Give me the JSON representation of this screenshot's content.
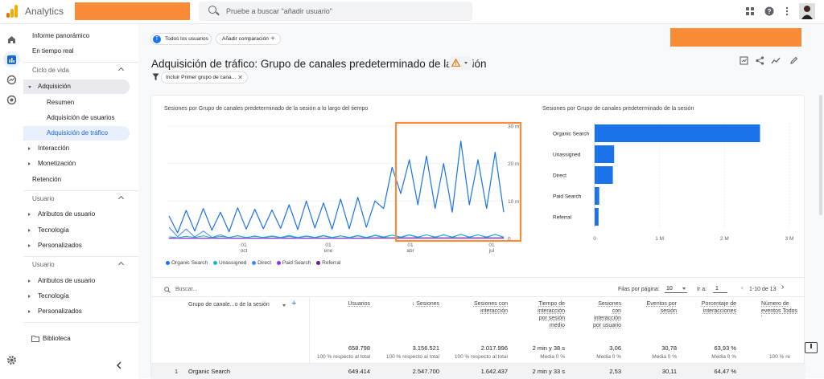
{
  "app": {
    "title": "Analytics"
  },
  "search": {
    "placeholder": "Pruebe a buscar \"añadir usuario\""
  },
  "nav": {
    "overview": "Informe panorámico",
    "realtime": "En tiempo real",
    "lifecycle_section": "Ciclo de vida",
    "acquisition": "Adquisición",
    "summary": "Resumen",
    "user_acq": "Adquisición de usuarios",
    "traffic_acq": "Adquisición de tráfico",
    "engagement": "Interacción",
    "monetization": "Monetización",
    "retention": "Retención",
    "user_section": "Usuario",
    "user_attrs": "Atributos de usuario",
    "tech": "Tecnología",
    "custom": "Personalizados",
    "user_section2": "Usuario",
    "user_attrs2": "Atributos de usuario",
    "tech2": "Tecnología",
    "custom2": "Personalizados",
    "library": "Biblioteca"
  },
  "toolbar": {
    "segment_avatar": "T",
    "segment": "Todos los usuarios",
    "add_comparison": "Añadir comparación",
    "filter": "Incluir Primer grupo de cana..."
  },
  "page_title": "Adquisición de tráfico: Grupo de canales predeterminado de la sesión",
  "line_chart": {
    "title": "Sesiones por Grupo de canales predeterminado de la sesión a lo largo del tiempo",
    "y_ticks": [
      "30 mil",
      "20 mil",
      "10 mil",
      "0"
    ],
    "x_ticks": [
      [
        "01",
        "oct"
      ],
      [
        "01",
        "ene"
      ],
      [
        "01",
        "abr"
      ],
      [
        "01",
        "jul"
      ]
    ]
  },
  "legend": [
    {
      "label": "Organic Search",
      "color": "#1a73e8"
    },
    {
      "label": "Unassigned",
      "color": "#12b5cb"
    },
    {
      "label": "Direct",
      "color": "#4285f4"
    },
    {
      "label": "Paid Search",
      "color": "#9334e6"
    },
    {
      "label": "Referral",
      "color": "#6a1b9a"
    }
  ],
  "bar_chart_title": "Sesiones por Grupo de canales predeterminado de la sesión",
  "chart_data": [
    {
      "type": "line",
      "title": "Sesiones por Grupo de canales predeterminado de la sesión a lo largo del tiempo",
      "xlabel": "",
      "ylabel": "",
      "x_range": [
        "sep",
        "jul"
      ],
      "ylim": [
        0,
        30000
      ],
      "x_ticks": [
        "01 oct",
        "01 ene",
        "01 abr",
        "01 jul"
      ],
      "y_ticks": [
        0,
        10000,
        20000,
        30000
      ],
      "series": [
        {
          "name": "Organic Search",
          "values": [
            6000,
            1500,
            7500,
            2000,
            8000,
            2200,
            7000,
            1800,
            8200,
            2500,
            7800,
            2600,
            7600,
            2700,
            9000,
            2400,
            10000,
            2800,
            9500,
            2500,
            10500,
            2600,
            11000,
            3000,
            10000,
            8000,
            19000,
            12000,
            21000,
            9000,
            22000,
            8000,
            20000,
            7000,
            26000,
            9000,
            21000,
            8000,
            23000,
            7000
          ]
        },
        {
          "name": "Unassigned",
          "values": [
            500,
            200,
            600,
            300,
            700,
            200,
            600,
            300,
            700,
            300,
            600,
            300,
            700,
            300,
            800,
            300,
            700,
            300,
            800,
            300,
            700,
            300,
            800,
            300,
            900,
            400,
            900,
            400,
            1000,
            400,
            1000,
            400,
            900,
            400,
            1100,
            400,
            1000,
            400,
            1100,
            400
          ]
        },
        {
          "name": "Direct",
          "values": [
            3000,
            500,
            2500,
            400,
            2000,
            300,
            1000,
            200,
            800,
            200,
            700,
            200,
            600,
            200,
            600,
            200,
            600,
            200,
            700,
            200,
            700,
            200,
            700,
            200,
            800,
            300,
            900,
            300,
            900,
            300,
            1000,
            300,
            1000,
            300,
            1100,
            300,
            1000,
            300,
            1100,
            300
          ]
        },
        {
          "name": "Paid Search",
          "values": [
            100,
            100,
            100,
            100,
            100,
            100,
            100,
            100,
            100,
            100,
            100,
            100,
            100,
            100,
            100,
            100,
            100,
            100,
            100,
            100,
            100,
            100,
            100,
            100,
            200,
            200,
            200,
            200,
            200,
            200,
            200,
            200,
            200,
            200,
            200,
            200,
            200,
            200,
            200,
            200
          ]
        },
        {
          "name": "Referral",
          "values": [
            50,
            50,
            50,
            50,
            50,
            50,
            50,
            50,
            50,
            50,
            50,
            50,
            50,
            50,
            50,
            50,
            50,
            50,
            50,
            50,
            50,
            50,
            50,
            50,
            100,
            100,
            100,
            100,
            100,
            100,
            100,
            100,
            100,
            100,
            100,
            100,
            100,
            100,
            100,
            100
          ]
        }
      ]
    },
    {
      "type": "bar",
      "title": "Sesiones por Grupo de canales predeterminado de la sesión",
      "categories": [
        "Organic Search",
        "Unassigned",
        "Direct",
        "Paid Search",
        "Referral"
      ],
      "values": [
        2547700,
        300000,
        280000,
        70000,
        60000
      ],
      "xlim": [
        0,
        3000000
      ],
      "x_ticks": [
        "0",
        "1 M",
        "2 M",
        "3 M"
      ],
      "orientation": "horizontal"
    }
  ],
  "table": {
    "search_placeholder": "Buscar...",
    "rows_per_page_label": "Filas por página:",
    "rows_per_page": "10",
    "goto_label": "Ir a:",
    "goto_value": "1",
    "range": "1-10 de 13",
    "dim_header": "Grupo de canale...o de la sesión",
    "columns": [
      "Usuarios",
      "Sesiones",
      "Sesiones con interacción",
      "Tiempo de interacción por sesión medio",
      "Sesiones con interacción por usuario",
      "Eventos por sesión",
      "Porcentaje de interacciones",
      "Número de eventos Todos los e"
    ],
    "totals": [
      "658.798",
      "3.156.521",
      "2.017.996",
      "2 min y 38 s",
      "3,06",
      "30,78",
      "63,93 %",
      ""
    ],
    "totals_sub": [
      "100 % respecto al total",
      "100 % respecto al total",
      "100 % respecto al total",
      "Media 0 %",
      "Media 0 %",
      "Media 0 %",
      "Media 0 %",
      "100 % re"
    ],
    "rows": [
      {
        "index": "1",
        "name": "Organic Search",
        "values": [
          "649.414",
          "2.547.700",
          "1.642.437",
          "2 min y 33 s",
          "2,53",
          "30,11",
          "64,47 %",
          ""
        ]
      }
    ]
  }
}
